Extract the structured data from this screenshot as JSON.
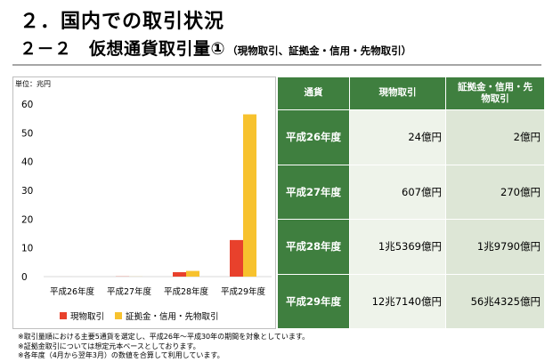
{
  "header": {
    "title": "２．国内での取引状況",
    "subtitle": "２－２　仮想通貨取引量①",
    "subtitle_note": "（現物取引、証拠金・信用・先物取引）"
  },
  "table": {
    "headers": [
      "通貨",
      "現物取引",
      "証拠金・信用・先物取引"
    ],
    "rows": [
      {
        "year": "平成26年度",
        "spot": "24億円",
        "margin": "2億円"
      },
      {
        "year": "平成27年度",
        "spot": "607億円",
        "margin": "270億円"
      },
      {
        "year": "平成28年度",
        "spot": "1兆5369億円",
        "margin": "1兆9790億円"
      },
      {
        "year": "平成29年度",
        "spot": "12兆7140億円",
        "margin": "56兆4325億円"
      }
    ]
  },
  "chart_data": {
    "type": "bar",
    "unit_label": "単位：兆円",
    "categories": [
      "平成26年度",
      "平成27年度",
      "平成28年度",
      "平成29年度"
    ],
    "series": [
      {
        "name": "現物取引",
        "values": [
          0.0024,
          0.0607,
          1.5369,
          12.714
        ],
        "color": "#e8412c"
      },
      {
        "name": "証拠金・信用・先物取引",
        "values": [
          0.0002,
          0.027,
          1.979,
          56.4325
        ],
        "color": "#f7c22e"
      }
    ],
    "ylim": [
      0,
      60
    ],
    "yticks": [
      "0",
      "10",
      "20",
      "30",
      "40",
      "50",
      "60"
    ],
    "grid": false,
    "legend": "bottom"
  },
  "notes": [
    "※取引量順における主要5通貨を選定し、平成26年～平成30年の期間を対象としています。",
    "※証拠金取引については想定元本ベースとしております。",
    "※各年度（4月から翌年3月）の数値を合算して利用しています。"
  ]
}
